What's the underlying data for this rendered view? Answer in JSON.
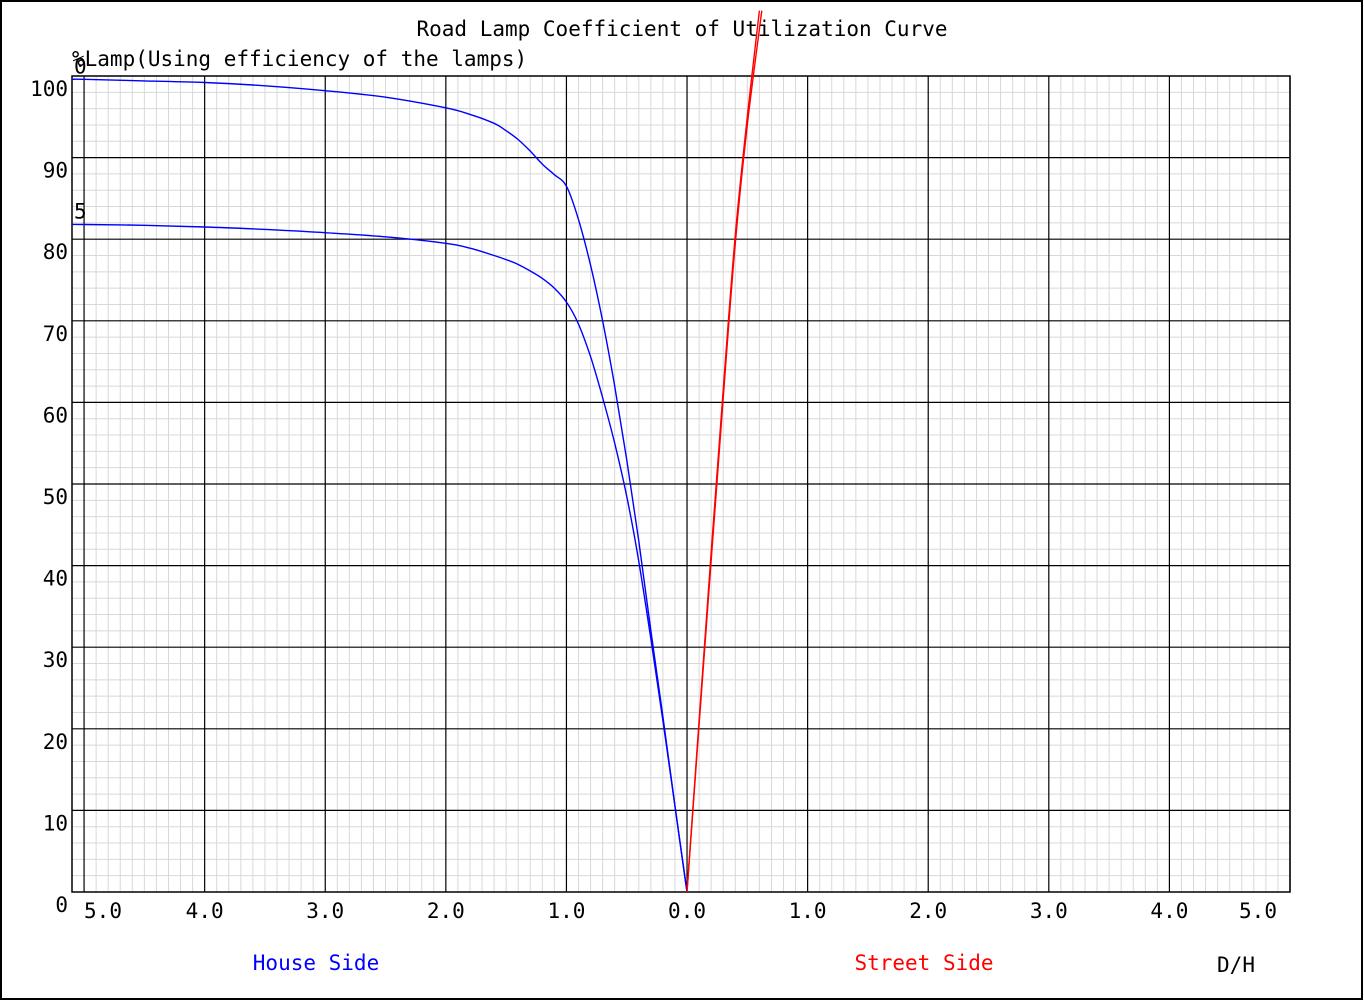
{
  "chart_data": {
    "type": "line",
    "title": "Road Lamp Coefficient of Utilization Curve",
    "ylabel": "%Lamp(Using efficiency of the lamps)",
    "xlabel": "D/H",
    "ylim": [
      0,
      100
    ],
    "xlim": [
      -5.0,
      5.0
    ],
    "yticks": [
      "0",
      "10",
      "20",
      "30",
      "40",
      "50",
      "60",
      "70",
      "80",
      "90",
      "100"
    ],
    "xtick_labels": [
      "5.0",
      "4.0",
      "3.0",
      "2.0",
      "1.0",
      "0.0",
      "1.0",
      "2.0",
      "3.0",
      "4.0",
      "5.0"
    ],
    "x_ticks_values": [
      -5,
      -4,
      -3,
      -2,
      -1,
      0,
      1,
      2,
      3,
      4,
      5
    ],
    "house_side_label": "House Side",
    "street_side_label": "Street Side",
    "grid": true,
    "colors": {
      "house": "#0000ff",
      "street": "#ff0000",
      "grid_major": "#000000",
      "grid_minor": "#d8d8d8"
    },
    "series": [
      {
        "name": "0",
        "side": "house",
        "color": "#0000ff",
        "x": [
          -5.1,
          -5.0,
          -4.5,
          -4.0,
          -3.5,
          -3.0,
          -2.5,
          -2.0,
          -1.8,
          -1.6,
          -1.5,
          -1.4,
          -1.3,
          -1.2,
          -1.1,
          -1.0,
          -0.9,
          -0.8,
          -0.7,
          -0.6,
          -0.5,
          -0.4,
          -0.3,
          -0.2,
          -0.1,
          0.0
        ],
        "y": [
          99.6,
          99.6,
          99.4,
          99.2,
          98.8,
          98.2,
          97.4,
          96.1,
          95.3,
          94.2,
          93.3,
          92.2,
          90.8,
          89.2,
          87.9,
          86.5,
          82.4,
          76.8,
          70.0,
          62.0,
          53.0,
          43.0,
          32.0,
          21.5,
          10.5,
          0.0
        ]
      },
      {
        "name": "5",
        "side": "house",
        "color": "#0000ff",
        "x": [
          -5.1,
          -5.0,
          -4.5,
          -4.0,
          -3.5,
          -3.0,
          -2.5,
          -2.0,
          -1.8,
          -1.6,
          -1.5,
          -1.4,
          -1.3,
          -1.2,
          -1.1,
          -1.0,
          -0.9,
          -0.8,
          -0.7,
          -0.6,
          -0.5,
          -0.4,
          -0.3,
          -0.2,
          -0.1,
          0.0
        ],
        "y": [
          81.8,
          81.8,
          81.7,
          81.5,
          81.2,
          80.8,
          80.3,
          79.5,
          78.9,
          78.0,
          77.5,
          76.9,
          76.1,
          75.2,
          74.0,
          72.3,
          69.6,
          65.6,
          60.6,
          55.0,
          48.5,
          40.5,
          31.0,
          21.0,
          10.5,
          0.0
        ]
      },
      {
        "name": "",
        "side": "street",
        "color": "#ff0000",
        "x": [
          0.0,
          0.1,
          0.2,
          0.3,
          0.4,
          0.5,
          0.6
        ],
        "y": [
          0.0,
          21.0,
          41.5,
          61.5,
          80.5,
          95.0,
          108.0
        ]
      },
      {
        "name": "",
        "side": "street",
        "color": "#ff0000",
        "x": [
          0.0,
          0.1,
          0.2,
          0.3,
          0.4,
          0.5,
          0.62
        ],
        "y": [
          0.0,
          20.5,
          40.5,
          60.5,
          79.5,
          94.0,
          108.0
        ]
      }
    ]
  }
}
